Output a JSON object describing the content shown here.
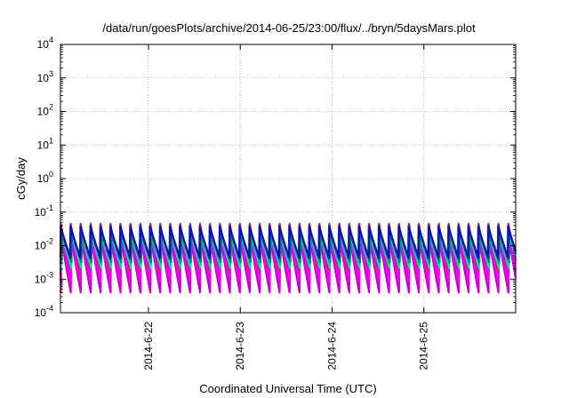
{
  "chart_data": {
    "type": "line",
    "title": "/data/run/goesPlots/archive/2014-06-25/23:00/flux/../bryn/5daysMars.plot",
    "xlabel": "Coordinated Universal Time (UTC)",
    "ylabel": "cGy/day",
    "y_scale": "log",
    "ylim": [
      0.0001,
      10000
    ],
    "y_ticks": [
      {
        "base": "10",
        "exp": "-4"
      },
      {
        "base": "10",
        "exp": "-3"
      },
      {
        "base": "10",
        "exp": "-2"
      },
      {
        "base": "10",
        "exp": "-1"
      },
      {
        "base": "10",
        "exp": "0"
      },
      {
        "base": "10",
        "exp": "1"
      },
      {
        "base": "10",
        "exp": "2"
      },
      {
        "base": "10",
        "exp": "3"
      },
      {
        "base": "10",
        "exp": "4"
      }
    ],
    "x_range": [
      "2014-06-21 01:00",
      "2014-06-26 00:00"
    ],
    "x_ticks": [
      "2014-6-22",
      "2014-6-23",
      "2014-6-24",
      "2014-6-25"
    ],
    "grid": true,
    "pulse_period_hours": 2.6,
    "series": [
      {
        "color": "#cc2200",
        "peak": 0.045,
        "trough": 0.0015,
        "phase_hours": 0.1
      },
      {
        "color": "#ff2fd0",
        "peak": 0.028,
        "trough": 0.0006,
        "phase_hours": 0.15
      },
      {
        "color": "#cc00cc",
        "peak": 0.02,
        "trough": 0.00035,
        "phase_hours": 0.2
      },
      {
        "color": "#ee00ee",
        "peak": 0.032,
        "trough": 0.0008,
        "phase_hours": 0.05
      },
      {
        "color": "#00b0b0",
        "peak": 0.03,
        "trough": 0.0025,
        "phase_hours": 0.25
      },
      {
        "color": "#00d8d8",
        "peak": 0.024,
        "trough": 0.002,
        "phase_hours": 0.3
      },
      {
        "color": "#009060",
        "peak": 0.026,
        "trough": 0.003,
        "phase_hours": 0.35
      },
      {
        "color": "#2040ff",
        "peak": 0.04,
        "trough": 0.0045,
        "phase_hours": 0.0
      },
      {
        "color": "#1010b0",
        "peak": 0.038,
        "trough": 0.004,
        "phase_hours": 0.08
      }
    ]
  }
}
